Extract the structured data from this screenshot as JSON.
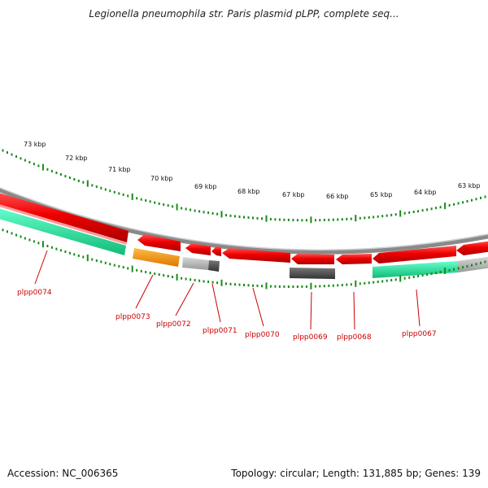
{
  "title": "Legionella pneumophila str. Paris plasmid pLPP, complete seq...",
  "footer": {
    "accession": "Accession: NC_006365",
    "summary": "Topology: circular; Length: 131,885 bp; Genes: 139"
  },
  "colors": {
    "forward_cds": "#ee0000",
    "reverse_cds": "#ee0000",
    "rna_green": "#22dd99",
    "orange": "#ff9900",
    "grey": "#aaaaaa",
    "dark_grey": "#555555",
    "ticks": "#1a8a1a",
    "labels": "#cc0000"
  },
  "scale_labels": [
    "73 kbp",
    "72 kbp",
    "71 kbp",
    "70 kbp",
    "69 kbp",
    "68 kbp",
    "67 kbp",
    "66 kbp",
    "65 kbp",
    "64 kbp",
    "63 kbp"
  ],
  "genes": [
    {
      "label": "plpp0074"
    },
    {
      "label": "plpp0073"
    },
    {
      "label": "plpp0072"
    },
    {
      "label": "plpp0071"
    },
    {
      "label": "plpp0070"
    },
    {
      "label": "plpp0069"
    },
    {
      "label": "plpp0068"
    },
    {
      "label": "plpp0067"
    }
  ]
}
